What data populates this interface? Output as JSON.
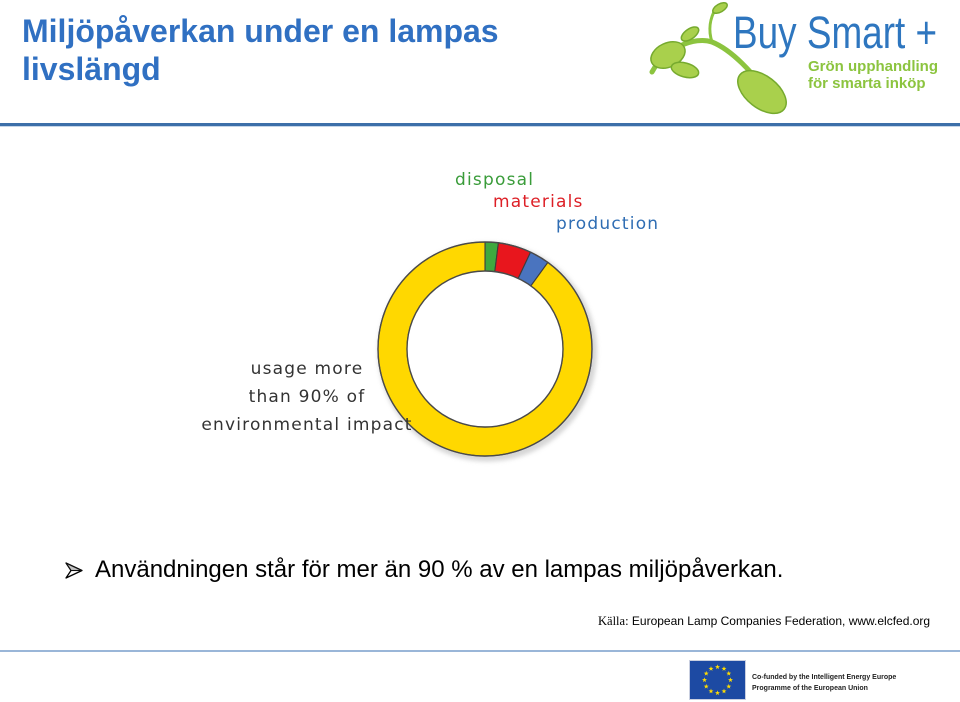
{
  "slide": {
    "title": "Miljöpåverkan under en lampas livslängd",
    "bullet_icon": "arrow-bullet-icon",
    "bullet_text": "Användningen står för mer än 90 % av en lampas miljöpåverkan.",
    "source_label": "Källa:",
    "source_text": "European Lamp Companies Federation, www.elcfed.org",
    "title_color": "#3070c2",
    "rule_color": "#3d6fa9"
  },
  "logo": {
    "icon": "sprout-logo-icon",
    "name": "Buy Smart +",
    "tagline": [
      "Grön upphandling",
      "för smarta inköp"
    ],
    "blue": "#2e76bf",
    "green": "#8cc43f"
  },
  "footer": {
    "flag_icon": "eu-flag-icon",
    "funding": [
      "Co-funded by the Intelligent Energy Europe",
      "Programme of the European Union"
    ]
  },
  "chart_data": {
    "type": "pie",
    "donut": true,
    "slices": [
      {
        "label": "disposal",
        "value": 2,
        "color": "#3fa83f",
        "label_color": "#3a9c3a"
      },
      {
        "label": "materials",
        "value": 5,
        "color": "#e8161d",
        "label_color": "#dd1f26"
      },
      {
        "label": "production",
        "value": 3,
        "color": "#4a74bf",
        "label_color": "#2f6db3"
      },
      {
        "label_lines": [
          "usage more",
          "than 90% of",
          "environmental impact"
        ],
        "value": 90,
        "color": "#ffd800",
        "label_color": "#333333"
      }
    ]
  }
}
